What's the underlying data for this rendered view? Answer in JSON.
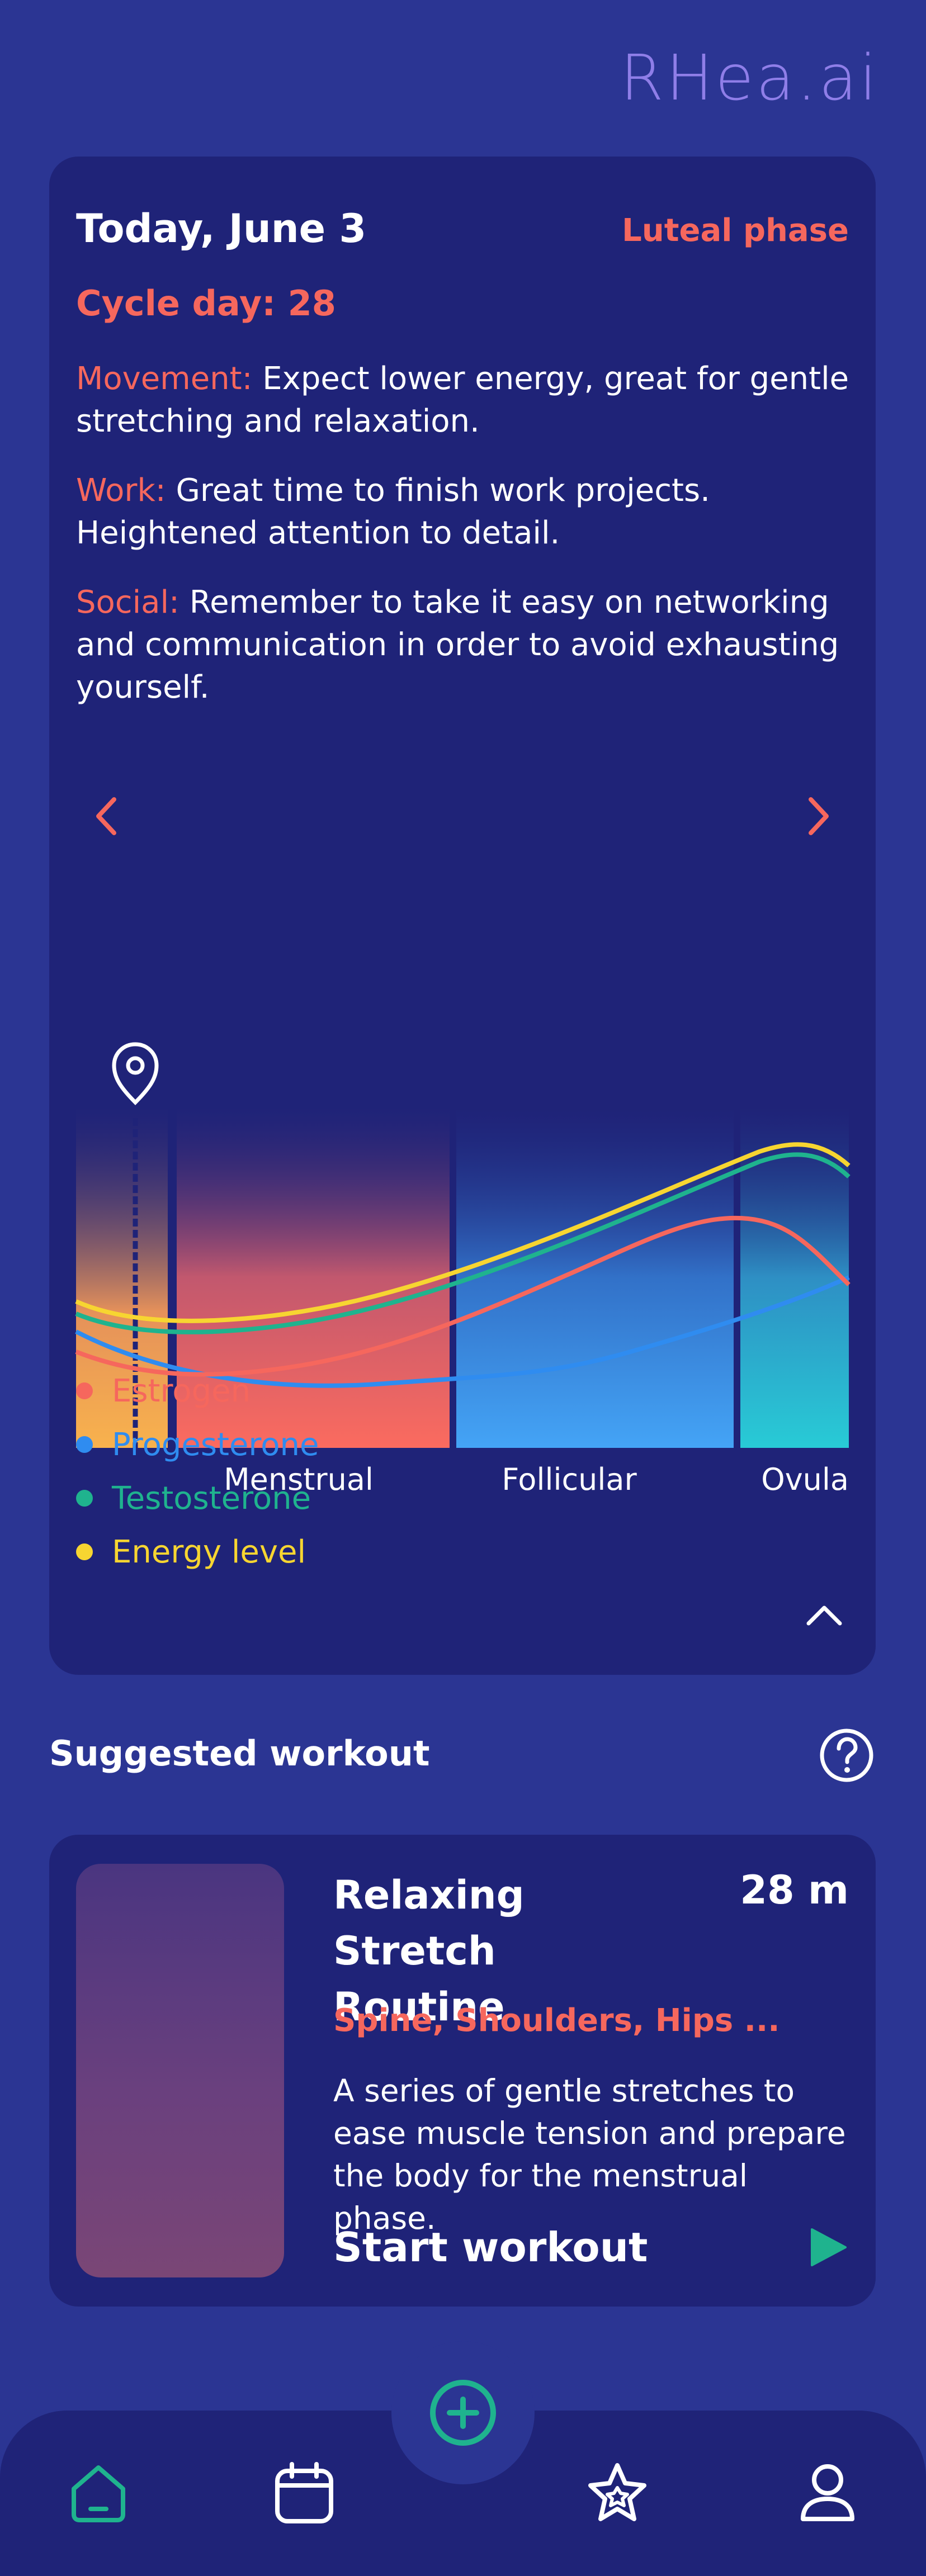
{
  "app": {
    "logo": "RHea.ai"
  },
  "today": {
    "title": "Today, June 3",
    "phase": "Luteal phase",
    "cycle_day": "Cycle day: 28",
    "movement_label": "Movement:",
    "movement_text": " Expect lower energy, great for gentle stretching and relaxation.",
    "work_label": "Work:",
    "work_text": " Great time to finish work projects. Heightened attention to detail.",
    "social_label": "Social:",
    "social_text": " Remember to take it easy on networking and communication in order to avoid exhausting yourself."
  },
  "chart_data": {
    "type": "line",
    "phases": [
      "Menstrual",
      "Follicular",
      "Ovula"
    ],
    "series": [
      {
        "name": "Estrogen",
        "color": "#f6675d"
      },
      {
        "name": "Progesterone",
        "color": "#2f8cf0"
      },
      {
        "name": "Testosterone",
        "color": "#1fb38e"
      },
      {
        "name": "Energy level",
        "color": "#f7d531"
      }
    ]
  },
  "legend": [
    {
      "label": "Estrogen",
      "color": "#f6675d"
    },
    {
      "label": "Progesterone",
      "color": "#2f8cf0"
    },
    {
      "label": "Testosterone",
      "color": "#1fb38e"
    },
    {
      "label": "Energy level",
      "color": "#f7d531"
    }
  ],
  "workout": {
    "section_title": "Suggested workout",
    "title": "Relaxing Stretch Routine",
    "duration": "28 m",
    "tags": "Spine, Shoulders, Hips ...",
    "description": "A series of gentle stretches to ease muscle tension and prepare the body for the menstrual phase.",
    "start_label": "Start workout"
  },
  "nav": {
    "items": [
      {
        "name": "home",
        "icon": "home-icon",
        "active": true
      },
      {
        "name": "calendar",
        "icon": "calendar-icon",
        "active": false
      },
      {
        "name": "add",
        "icon": "plus-circle-icon",
        "active": false
      },
      {
        "name": "favorites",
        "icon": "star-icon",
        "active": false
      },
      {
        "name": "profile",
        "icon": "user-icon",
        "active": false
      }
    ]
  },
  "colors": {
    "background": "#2b3593",
    "card": "#1f2378",
    "accent": "#f6675d",
    "teal": "#1fb38e",
    "logo": "#8f7ee8"
  }
}
